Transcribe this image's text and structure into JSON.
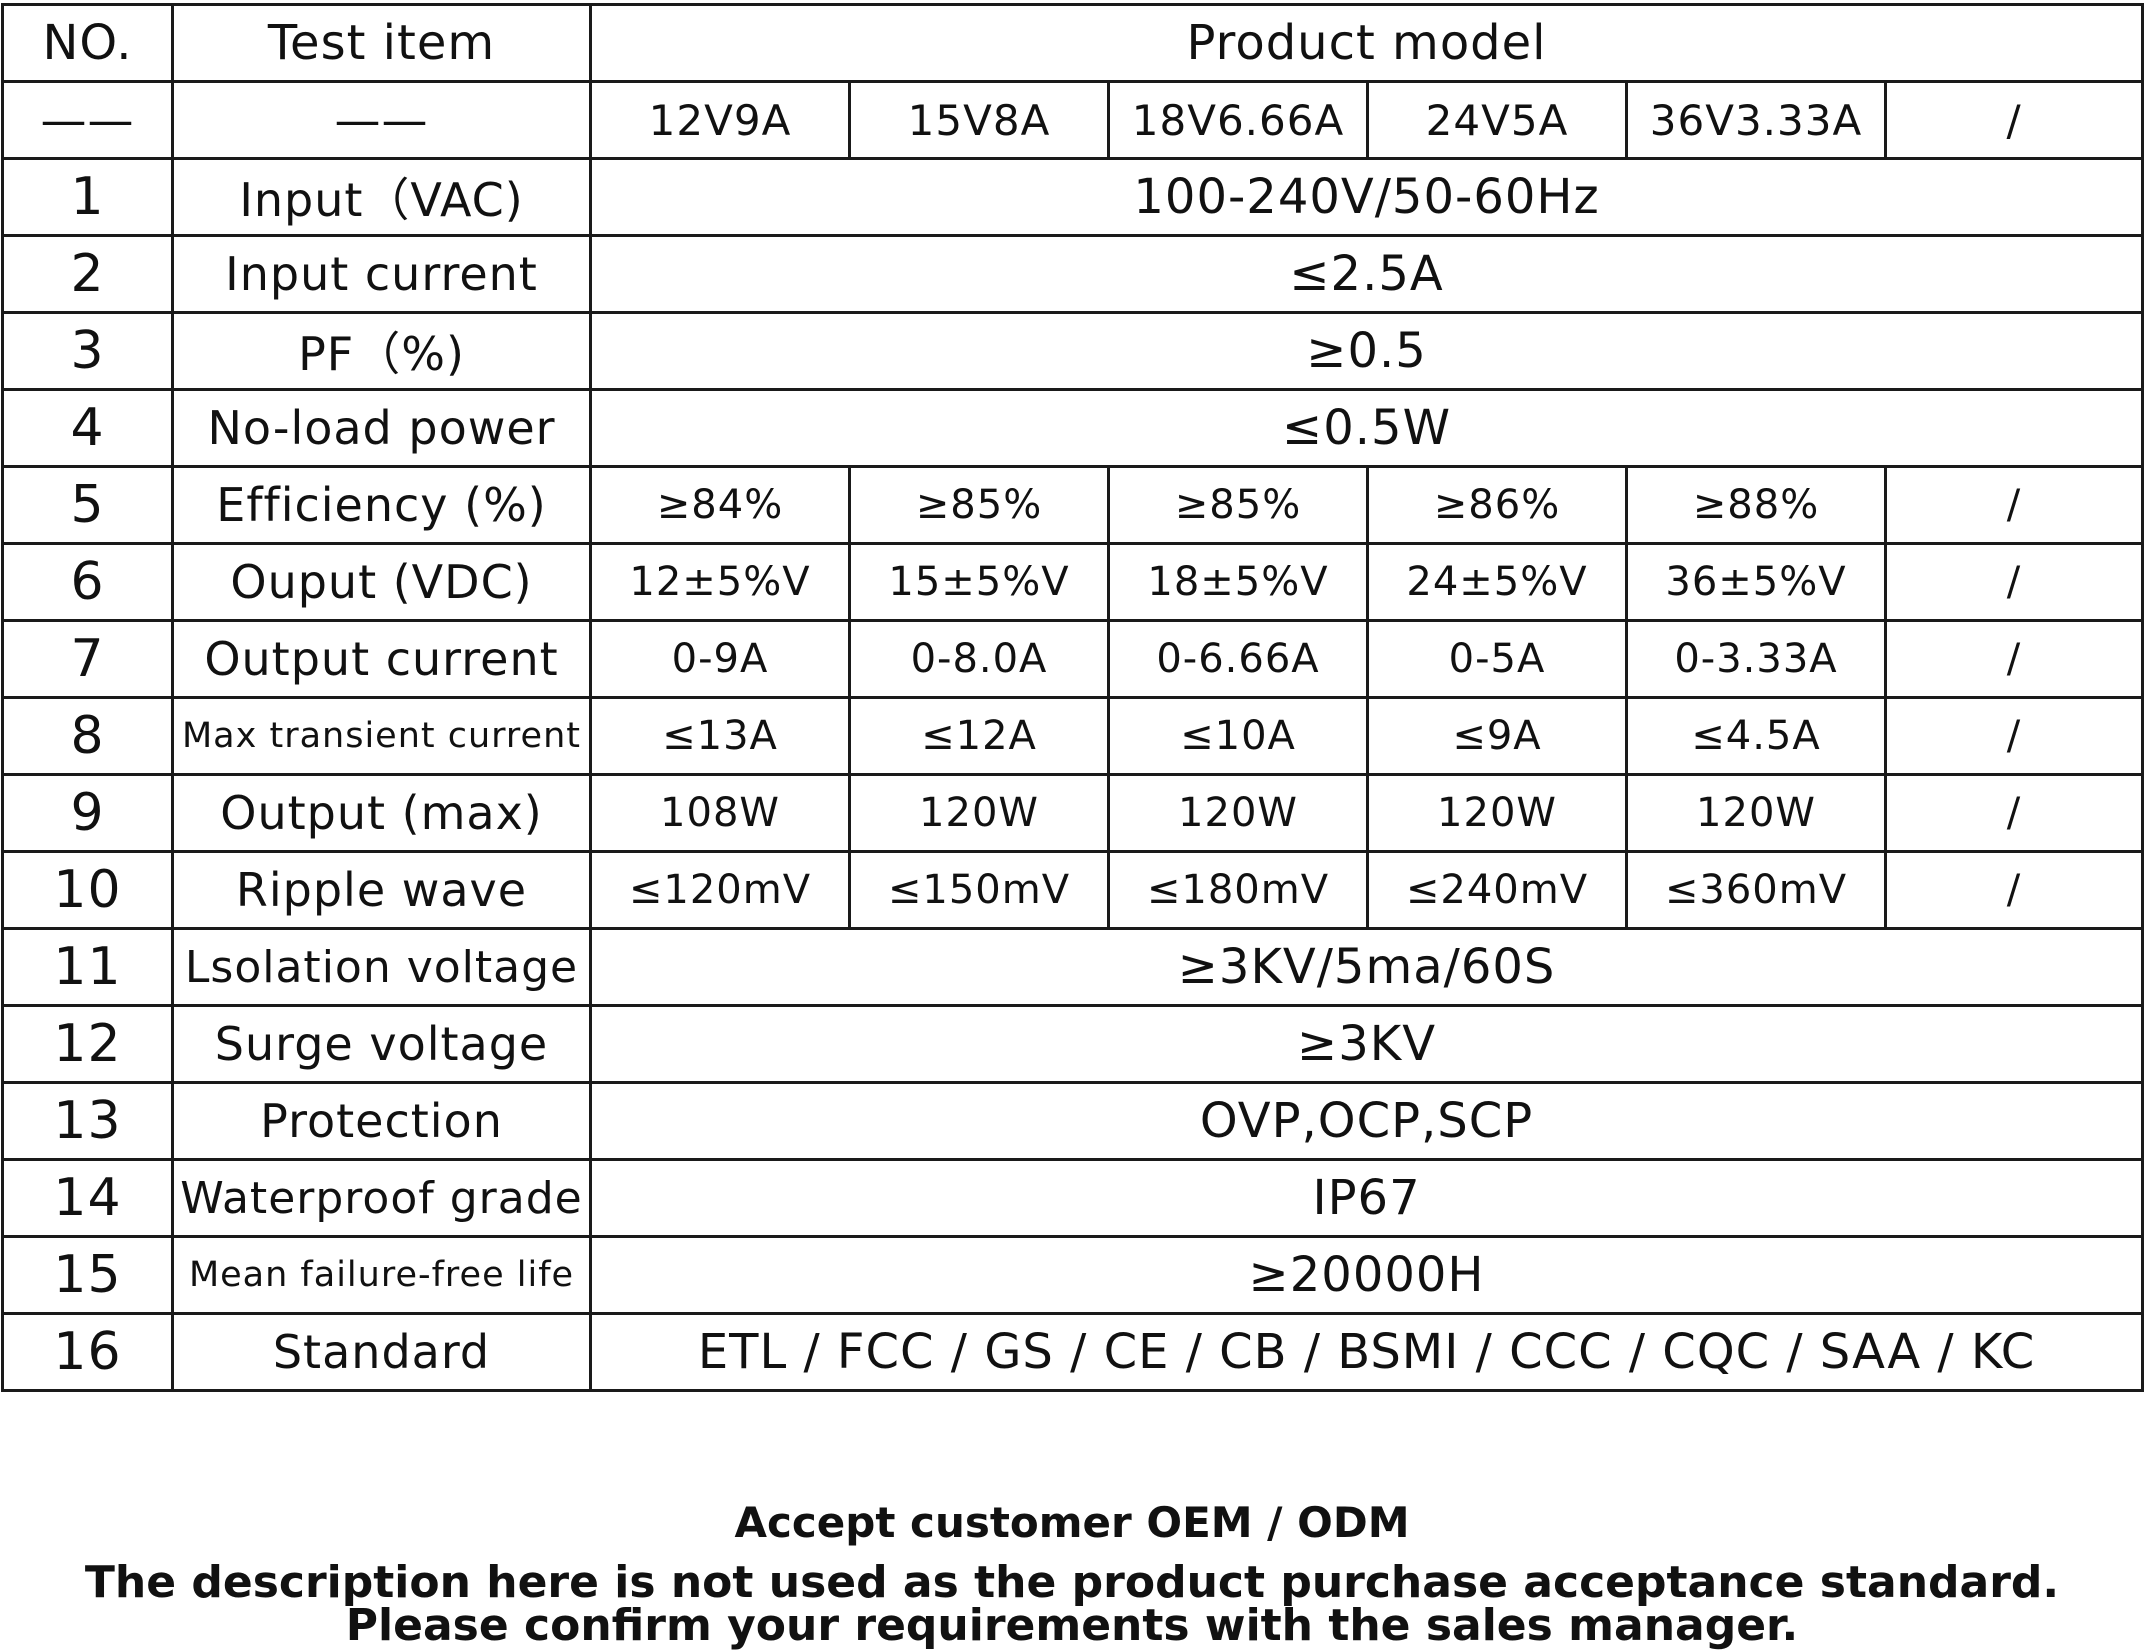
{
  "header": {
    "no": "NO.",
    "test_item": "Test item",
    "product_model": "Product model"
  },
  "models_row": {
    "no": "——",
    "item": "——",
    "models": [
      "12V9A",
      "15V8A",
      "18V6.66A",
      "24V5A",
      "36V3.33A",
      "/"
    ]
  },
  "rows": [
    {
      "no": "1",
      "item": "Input（VAC)",
      "value": "100-240V/50-60Hz"
    },
    {
      "no": "2",
      "item": "Input current",
      "value": "≤2.5A"
    },
    {
      "no": "3",
      "item": "PF（%)",
      "value": "≥0.5"
    },
    {
      "no": "4",
      "item": "No-load power",
      "value": "≤0.5W"
    },
    {
      "no": "5",
      "item": "Efficiency (%)",
      "values": [
        "≥84%",
        "≥85%",
        "≥85%",
        "≥86%",
        "≥88%",
        "/"
      ]
    },
    {
      "no": "6",
      "item": "Ouput (VDC)",
      "values": [
        "12±5%V",
        "15±5%V",
        "18±5%V",
        "24±5%V",
        "36±5%V",
        "/"
      ]
    },
    {
      "no": "7",
      "item": "Output current",
      "values": [
        "0-9A",
        "0-8.0A",
        "0-6.66A",
        "0-5A",
        "0-3.33A",
        "/"
      ]
    },
    {
      "no": "8",
      "item": "Max transient current",
      "values": [
        "≤13A",
        "≤12A",
        "≤10A",
        "≤9A",
        "≤4.5A",
        "/"
      ]
    },
    {
      "no": "9",
      "item": "Output (max)",
      "values": [
        "108W",
        "120W",
        "120W",
        "120W",
        "120W",
        "/"
      ]
    },
    {
      "no": "10",
      "item": "Ripple wave",
      "values": [
        "≤120mV",
        "≤150mV",
        "≤180mV",
        "≤240mV",
        "≤360mV",
        "/"
      ]
    },
    {
      "no": "11",
      "item": "Lsolation voltage",
      "value": "≥3KV/5ma/60S"
    },
    {
      "no": "12",
      "item": "Surge voltage",
      "value": "≥3KV"
    },
    {
      "no": "13",
      "item": "Protection",
      "value": "OVP,OCP,SCP"
    },
    {
      "no": "14",
      "item": "Waterproof grade",
      "value": "IP67"
    },
    {
      "no": "15",
      "item": "Mean failure-free life",
      "value": "≥20000H"
    },
    {
      "no": "16",
      "item": "Standard",
      "value": "ETL / FCC / GS / CE / CB / BSMI / CCC / CQC / SAA / KC"
    }
  ],
  "footer": {
    "line1": "Accept customer OEM / ODM",
    "line2": "The description here is not used as the product purchase acceptance standard.",
    "line3": "Please confirm your requirements with the sales manager."
  }
}
